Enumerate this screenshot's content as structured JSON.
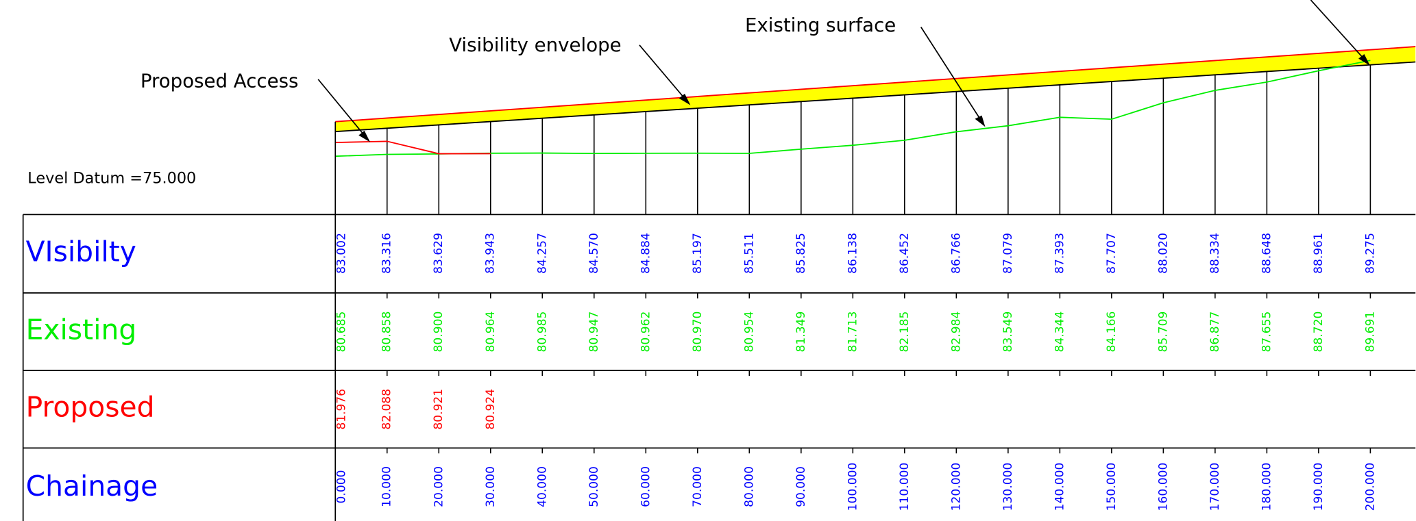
{
  "annotations": {
    "proposed_access": "Proposed Access",
    "visibility_envelope": "Visibility envelope",
    "existing_surface": "Existing surface"
  },
  "level_datum": {
    "label": "Level Datum =",
    "value": "75.000"
  },
  "rows": [
    {
      "label": "VIsibilty",
      "color": "#0000ff",
      "values": [
        "83.002",
        "83.316",
        "83.629",
        "83.943",
        "84.257",
        "84.570",
        "84.884",
        "85.197",
        "85.511",
        "85.825",
        "86.138",
        "86.452",
        "86.766",
        "87.079",
        "87.393",
        "87.707",
        "88.020",
        "88.334",
        "88.648",
        "88.961",
        "89.275"
      ]
    },
    {
      "label": "Existing",
      "color": "#00ee00",
      "values": [
        "80.685",
        "80.858",
        "80.900",
        "80.964",
        "80.985",
        "80.947",
        "80.962",
        "80.970",
        "80.954",
        "81.349",
        "81.713",
        "82.185",
        "82.984",
        "83.549",
        "84.344",
        "84.166",
        "85.709",
        "86.877",
        "87.655",
        "88.720",
        "89.691"
      ]
    },
    {
      "label": "Proposed",
      "color": "#ff0000",
      "values": [
        "81.976",
        "82.088",
        "80.921",
        "80.924"
      ]
    },
    {
      "label": "Chainage",
      "color": "#0000ff",
      "values": [
        "0.000",
        "10.000",
        "20.000",
        "30.000",
        "40.000",
        "50.000",
        "60.000",
        "70.000",
        "80.000",
        "90.000",
        "100.000",
        "110.000",
        "120.000",
        "130.000",
        "140.000",
        "150.000",
        "160.000",
        "170.000",
        "180.000",
        "190.000",
        "200.000"
      ]
    }
  ]
}
